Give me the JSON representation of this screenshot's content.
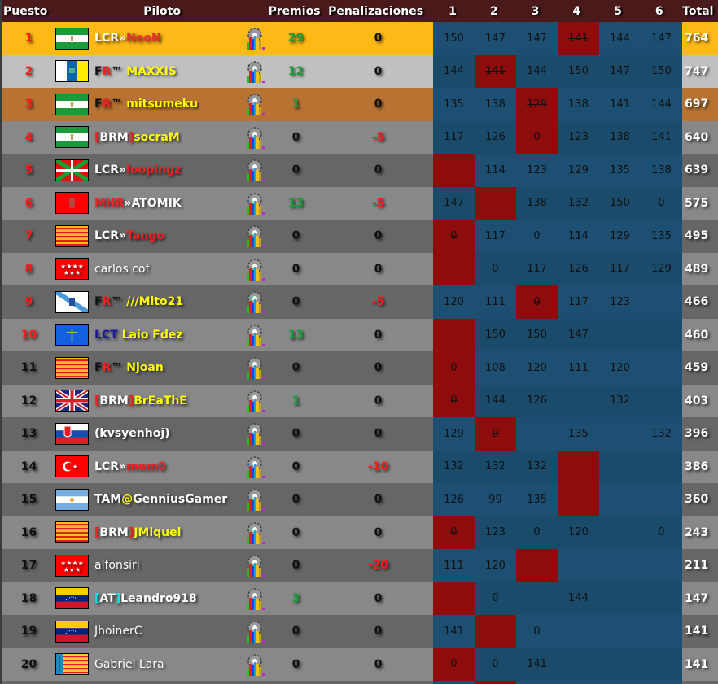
{
  "header": {
    "puesto": "Puesto",
    "piloto": "Piloto",
    "premios": "Premios",
    "penalizaciones": "Penalizaciones",
    "races": [
      "1",
      "2",
      "3",
      "4",
      "5",
      "6"
    ],
    "total": "Total"
  },
  "colors": {
    "gold": "#ffb916",
    "silver": "#c0c0c0",
    "bronze": "#b87333",
    "row_light": "#888888",
    "row_dark": "#666666",
    "race_bg": "#1c4f71",
    "race_bg_alt": "#1a4b6b",
    "discarded": "#8e0c0c",
    "header_bg": "#4a1a1b",
    "prize_green": "#1a9c3a",
    "penalty_red": "#ff1a1a"
  },
  "rows": [
    {
      "pos": "1",
      "flag": "andalucia",
      "name": [
        [
          "LCR",
          "#fff"
        ],
        [
          "»",
          "#fff"
        ],
        [
          "NeoN",
          "#e83030"
        ]
      ],
      "premios": "29",
      "pen": "0",
      "races": [
        {
          "v": "150"
        },
        {
          "v": "147"
        },
        {
          "v": "147"
        },
        {
          "v": "141",
          "d": true
        },
        {
          "v": "144"
        },
        {
          "v": "147"
        }
      ],
      "total": "764"
    },
    {
      "pos": "2",
      "flag": "canarias",
      "name": [
        [
          "F",
          "#111"
        ],
        [
          "R",
          "#e22"
        ],
        [
          "™ ",
          "#111"
        ],
        [
          "MAXXIS",
          "#ffff00"
        ]
      ],
      "premios": "12",
      "pen": "0",
      "races": [
        {
          "v": "144"
        },
        {
          "v": "141",
          "d": true
        },
        {
          "v": "144"
        },
        {
          "v": "150"
        },
        {
          "v": "147"
        },
        {
          "v": "150"
        }
      ],
      "total": "747"
    },
    {
      "pos": "3",
      "flag": "andalucia",
      "name": [
        [
          "F",
          "#111"
        ],
        [
          "R",
          "#e22"
        ],
        [
          "™ ",
          "#111"
        ],
        [
          "mitsumeku",
          "#ffff00"
        ]
      ],
      "premios": "1",
      "pen": "0",
      "races": [
        {
          "v": "135"
        },
        {
          "v": "138"
        },
        {
          "v": "129",
          "d": true
        },
        {
          "v": "138"
        },
        {
          "v": "141"
        },
        {
          "v": "144"
        }
      ],
      "total": "697"
    },
    {
      "pos": "4",
      "flag": "andalucia",
      "name": [
        [
          "[",
          "#e22"
        ],
        [
          "BRM",
          "#fff"
        ],
        [
          "]",
          "#e22"
        ],
        [
          "socraM",
          "#ffff00"
        ]
      ],
      "premios": "0",
      "pen": "-5",
      "races": [
        {
          "v": "117"
        },
        {
          "v": "126"
        },
        {
          "v": "0",
          "d": true
        },
        {
          "v": "123"
        },
        {
          "v": "138"
        },
        {
          "v": "141"
        }
      ],
      "total": "640"
    },
    {
      "pos": "5",
      "flag": "euskadi",
      "name": [
        [
          "LCR",
          "#fff"
        ],
        [
          "»",
          "#fff"
        ],
        [
          "loopingz",
          "#e22"
        ]
      ],
      "premios": "0",
      "pen": "0",
      "races": [
        {
          "v": "",
          "d": true
        },
        {
          "v": "114"
        },
        {
          "v": "123"
        },
        {
          "v": "129"
        },
        {
          "v": "135"
        },
        {
          "v": "138"
        }
      ],
      "total": "639"
    },
    {
      "pos": "6",
      "flag": "murcia",
      "name": [
        [
          "MHR",
          "#e22"
        ],
        [
          "»ATOMIK",
          "#fff"
        ]
      ],
      "premios": "13",
      "pen": "-5",
      "races": [
        {
          "v": "147"
        },
        {
          "v": "",
          "d": true
        },
        {
          "v": "138"
        },
        {
          "v": "132"
        },
        {
          "v": "150"
        },
        {
          "v": "0"
        }
      ],
      "total": "575"
    },
    {
      "pos": "7",
      "flag": "catalonia",
      "name": [
        [
          "LCR",
          "#fff"
        ],
        [
          "»",
          "#fff"
        ],
        [
          "Tango",
          "#e22"
        ]
      ],
      "premios": "0",
      "pen": "0",
      "races": [
        {
          "v": "0",
          "d": true
        },
        {
          "v": "117"
        },
        {
          "v": "0"
        },
        {
          "v": "114"
        },
        {
          "v": "129"
        },
        {
          "v": "135"
        }
      ],
      "total": "495"
    },
    {
      "pos": "8",
      "flag": "madrid",
      "name": [
        [
          "carlos cof",
          "#fff",
          "n"
        ]
      ],
      "premios": "0",
      "pen": "0",
      "races": [
        {
          "v": "",
          "d": true
        },
        {
          "v": "0"
        },
        {
          "v": "117"
        },
        {
          "v": "126"
        },
        {
          "v": "117"
        },
        {
          "v": "129"
        }
      ],
      "total": "489"
    },
    {
      "pos": "9",
      "flag": "galicia",
      "name": [
        [
          "F",
          "#111"
        ],
        [
          "R",
          "#e22"
        ],
        [
          "™ ",
          "#111"
        ],
        [
          "///Mito21",
          "#ffff00"
        ]
      ],
      "premios": "0",
      "pen": "-5",
      "races": [
        {
          "v": "120"
        },
        {
          "v": "111"
        },
        {
          "v": "0",
          "d": true
        },
        {
          "v": "117"
        },
        {
          "v": "123"
        },
        {
          "v": ""
        }
      ],
      "total": "466"
    },
    {
      "pos": "10",
      "flag": "asturias",
      "name": [
        [
          "LCT ",
          "#1a1aa0"
        ],
        [
          "Laio Fdez",
          "#ffff00"
        ]
      ],
      "premios": "13",
      "pen": "0",
      "races": [
        {
          "v": "",
          "d": true
        },
        {
          "v": "150"
        },
        {
          "v": "150"
        },
        {
          "v": "147"
        },
        {
          "v": ""
        },
        {
          "v": ""
        }
      ],
      "total": "460"
    },
    {
      "pos": "11",
      "flag": "catalonia",
      "name": [
        [
          "F",
          "#111"
        ],
        [
          "R",
          "#e22"
        ],
        [
          "™ ",
          "#111"
        ],
        [
          "Njoan",
          "#ffff00"
        ]
      ],
      "premios": "0",
      "pen": "0",
      "races": [
        {
          "v": "0",
          "d": true
        },
        {
          "v": "108"
        },
        {
          "v": "120"
        },
        {
          "v": "111"
        },
        {
          "v": "120"
        },
        {
          "v": ""
        }
      ],
      "total": "459"
    },
    {
      "pos": "12",
      "flag": "uk",
      "name": [
        [
          "[",
          "#e22"
        ],
        [
          "BRM",
          "#fff"
        ],
        [
          "]",
          "#e22"
        ],
        [
          "BrEaThE",
          "#ffff00"
        ]
      ],
      "premios": "1",
      "pen": "0",
      "races": [
        {
          "v": "0",
          "d": true
        },
        {
          "v": "144"
        },
        {
          "v": "126"
        },
        {
          "v": ""
        },
        {
          "v": "132"
        },
        {
          "v": ""
        }
      ],
      "total": "403"
    },
    {
      "pos": "13",
      "flag": "slovakia",
      "name": [
        [
          "(kvsyenhoj)",
          "#fff"
        ]
      ],
      "premios": "0",
      "pen": "0",
      "races": [
        {
          "v": "129"
        },
        {
          "v": "0",
          "d": true
        },
        {
          "v": ""
        },
        {
          "v": "135"
        },
        {
          "v": ""
        },
        {
          "v": "132"
        }
      ],
      "total": "396"
    },
    {
      "pos": "14",
      "flag": "turkey",
      "name": [
        [
          "LCR",
          "#fff"
        ],
        [
          "»",
          "#fff"
        ],
        [
          "mem0",
          "#e22"
        ]
      ],
      "premios": "0",
      "pen": "-10",
      "races": [
        {
          "v": "132"
        },
        {
          "v": "132"
        },
        {
          "v": "132"
        },
        {
          "v": "",
          "d": true
        },
        {
          "v": ""
        },
        {
          "v": ""
        }
      ],
      "total": "386"
    },
    {
      "pos": "15",
      "flag": "argentina",
      "name": [
        [
          "TAM",
          "#fff"
        ],
        [
          "@",
          "#ffff00"
        ],
        [
          "GenniusGamer",
          "#fff"
        ]
      ],
      "premios": "0",
      "pen": "0",
      "races": [
        {
          "v": "126"
        },
        {
          "v": "99"
        },
        {
          "v": "135"
        },
        {
          "v": "",
          "d": true
        },
        {
          "v": ""
        },
        {
          "v": ""
        }
      ],
      "total": "360"
    },
    {
      "pos": "16",
      "flag": "catalonia",
      "name": [
        [
          "[",
          "#e22"
        ],
        [
          "BRM",
          "#fff"
        ],
        [
          "]",
          "#e22"
        ],
        [
          "JMiquel",
          "#ffff00"
        ]
      ],
      "premios": "0",
      "pen": "0",
      "races": [
        {
          "v": "0",
          "d": true
        },
        {
          "v": "123"
        },
        {
          "v": "0"
        },
        {
          "v": "120"
        },
        {
          "v": ""
        },
        {
          "v": "0"
        }
      ],
      "total": "243"
    },
    {
      "pos": "17",
      "flag": "madrid",
      "name": [
        [
          "alfonsiri",
          "#fff",
          "n"
        ]
      ],
      "premios": "0",
      "pen": "-20",
      "races": [
        {
          "v": "111"
        },
        {
          "v": "120"
        },
        {
          "v": "",
          "d": true
        },
        {
          "v": ""
        },
        {
          "v": ""
        },
        {
          "v": ""
        }
      ],
      "total": "211"
    },
    {
      "pos": "18",
      "flag": "venezuela",
      "name": [
        [
          "[",
          "#00e5e5"
        ],
        [
          "AT",
          "#fff"
        ],
        [
          "]",
          "#00e5e5"
        ],
        [
          "Leandro918",
          "#fff"
        ]
      ],
      "premios": "3",
      "pen": "0",
      "races": [
        {
          "v": "",
          "d": true
        },
        {
          "v": "0"
        },
        {
          "v": ""
        },
        {
          "v": "144"
        },
        {
          "v": ""
        },
        {
          "v": ""
        }
      ],
      "total": "147"
    },
    {
      "pos": "19",
      "flag": "venezuela",
      "name": [
        [
          "JhoinerC",
          "#fff",
          "n"
        ]
      ],
      "premios": "0",
      "pen": "0",
      "races": [
        {
          "v": "141"
        },
        {
          "v": "",
          "d": true
        },
        {
          "v": "0"
        },
        {
          "v": ""
        },
        {
          "v": ""
        },
        {
          "v": ""
        }
      ],
      "total": "141"
    },
    {
      "pos": "20",
      "flag": "valencia",
      "name": [
        [
          "Gabriel Lara",
          "#fff",
          "n"
        ]
      ],
      "premios": "0",
      "pen": "0",
      "races": [
        {
          "v": "0",
          "d": true
        },
        {
          "v": "0"
        },
        {
          "v": "141"
        },
        {
          "v": ""
        },
        {
          "v": ""
        },
        {
          "v": ""
        }
      ],
      "total": "141"
    }
  ]
}
